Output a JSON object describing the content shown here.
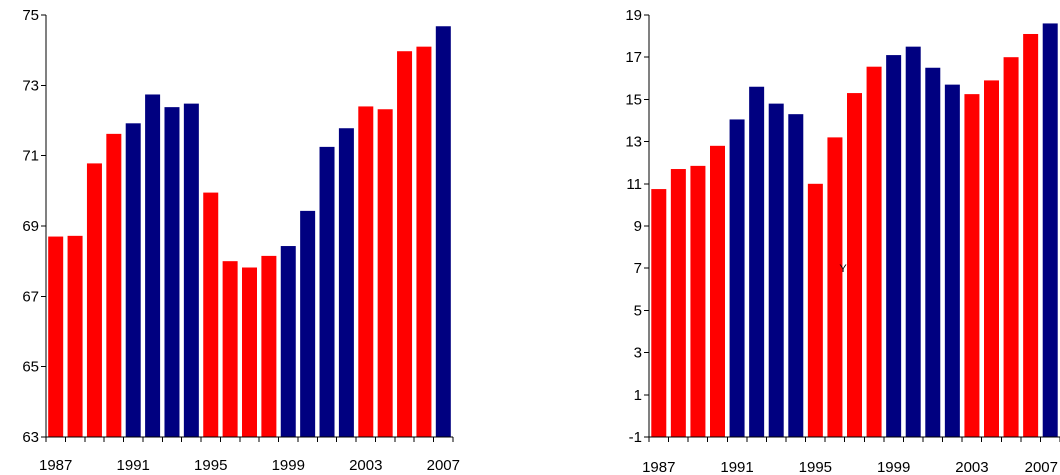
{
  "colors": {
    "red": "#ff0000",
    "blue": "#000080",
    "axis": "#000000"
  },
  "chart_data": [
    {
      "type": "bar",
      "categories": [
        "1987",
        "1988",
        "1989",
        "1990",
        "1991",
        "1992",
        "1993",
        "1994",
        "1995",
        "1996",
        "1997",
        "1998",
        "1999",
        "2000",
        "2001",
        "2002",
        "2003",
        "2004",
        "2005",
        "2006",
        "2007"
      ],
      "x_tick_labels": [
        "1987",
        "1991",
        "1995",
        "1999",
        "2003",
        "2007"
      ],
      "values": [
        68.7,
        68.72,
        70.78,
        71.62,
        71.92,
        72.74,
        72.38,
        72.48,
        69.95,
        68.0,
        67.82,
        68.15,
        68.43,
        69.43,
        71.25,
        71.78,
        72.4,
        72.32,
        73.97,
        74.1,
        74.68
      ],
      "bar_colors": [
        "red",
        "red",
        "red",
        "red",
        "blue",
        "blue",
        "blue",
        "blue",
        "red",
        "red",
        "red",
        "red",
        "blue",
        "blue",
        "blue",
        "blue",
        "red",
        "red",
        "red",
        "red",
        "blue"
      ],
      "ylim": [
        63,
        75
      ],
      "yticks": [
        63,
        65,
        67,
        69,
        71,
        73,
        75
      ],
      "grid": false,
      "title": "",
      "xlabel": "",
      "ylabel": ""
    },
    {
      "type": "bar",
      "categories": [
        "1987",
        "1988",
        "1989",
        "1990",
        "1991",
        "1992",
        "1993",
        "1994",
        "1995",
        "1996",
        "1997",
        "1998",
        "1999",
        "2000",
        "2001",
        "2002",
        "2003",
        "2004",
        "2005",
        "2006",
        "2007"
      ],
      "x_tick_labels": [
        "1987",
        "1991",
        "1995",
        "1999",
        "2003",
        "2007"
      ],
      "values": [
        10.75,
        11.7,
        11.85,
        12.8,
        14.05,
        15.6,
        14.8,
        14.3,
        11.0,
        13.2,
        15.3,
        16.55,
        17.1,
        17.5,
        16.5,
        15.7,
        15.25,
        15.9,
        17.0,
        18.1,
        18.6
      ],
      "bar_colors": [
        "red",
        "red",
        "red",
        "red",
        "blue",
        "blue",
        "blue",
        "blue",
        "red",
        "red",
        "red",
        "red",
        "blue",
        "blue",
        "blue",
        "blue",
        "red",
        "red",
        "red",
        "red",
        "blue"
      ],
      "ylim": [
        -1,
        19
      ],
      "yticks": [
        -1,
        1,
        3,
        5,
        7,
        9,
        11,
        13,
        15,
        17,
        19
      ],
      "annotation": "Y",
      "grid": false,
      "title": "",
      "xlabel": "",
      "ylabel": ""
    }
  ]
}
